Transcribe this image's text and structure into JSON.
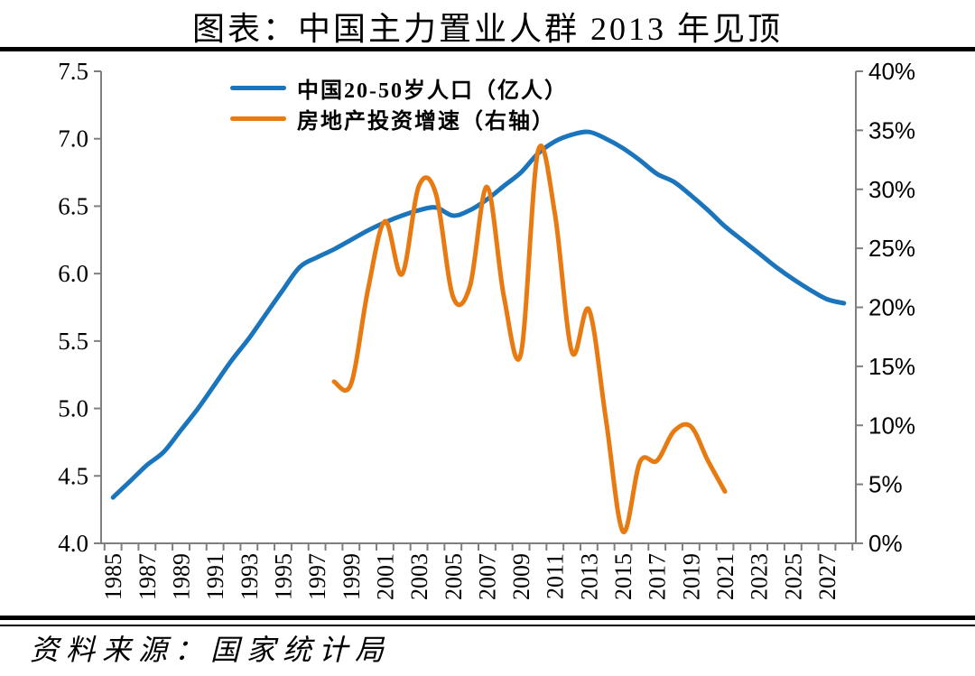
{
  "page": {
    "title": "图表：中国主力置业人群 2013 年见顶",
    "source": "资料来源：国家统计局"
  },
  "legend": {
    "items": [
      {
        "label": "中国20-50岁人口（亿人）",
        "color": "#1B75BC"
      },
      {
        "label": "房地产投资增速（右轴）",
        "color": "#E87A12"
      }
    ]
  },
  "colors": {
    "axis": "#7F7F7F",
    "text": "#000000",
    "rule": "#000000",
    "background": "#FFFFFF"
  },
  "chart_data": {
    "type": "line",
    "title": "图表：中国主力置业人群 2013 年见顶",
    "source": "资料来源：国家统计局",
    "grid": false,
    "legend_position": "inside-top-center",
    "x_axis": {
      "min": 1985,
      "max": 2028,
      "tick_step_years": 1,
      "tick_labels": [
        "1985",
        "1987",
        "1989",
        "1991",
        "1993",
        "1995",
        "1997",
        "1999",
        "2001",
        "2003",
        "2005",
        "2007",
        "2009",
        "2011",
        "2013",
        "2015",
        "2017",
        "2019",
        "2021",
        "2023",
        "2025",
        "2027"
      ],
      "label_rotation_deg": -90
    },
    "y_axis_left": {
      "min": 4.0,
      "max": 7.5,
      "step": 0.5,
      "tick_labels": [
        "7.5",
        "7.0",
        "6.5",
        "6.0",
        "5.5",
        "5.0",
        "4.5",
        "4.0"
      ]
    },
    "y_axis_right": {
      "min": 0,
      "max": 40,
      "step": 5,
      "unit": "%",
      "tick_labels": [
        "40%",
        "35%",
        "30%",
        "25%",
        "20%",
        "15%",
        "10%",
        "5%",
        "0%"
      ]
    },
    "series": [
      {
        "name": "中国20-50岁人口（亿人）",
        "axis": "left",
        "color": "#1B75BC",
        "years": [
          1985,
          1986,
          1987,
          1988,
          1989,
          1990,
          1991,
          1992,
          1993,
          1994,
          1995,
          1996,
          1997,
          1998,
          1999,
          2000,
          2001,
          2002,
          2003,
          2004,
          2005,
          2006,
          2007,
          2008,
          2009,
          2010,
          2011,
          2012,
          2013,
          2014,
          2015,
          2016,
          2017,
          2018,
          2019,
          2020,
          2021,
          2022,
          2023,
          2024,
          2025,
          2026,
          2027,
          2028
        ],
        "values": [
          4.34,
          4.46,
          4.58,
          4.68,
          4.84,
          5.0,
          5.18,
          5.36,
          5.52,
          5.7,
          5.88,
          6.05,
          6.12,
          6.18,
          6.25,
          6.32,
          6.38,
          6.43,
          6.47,
          6.49,
          6.43,
          6.47,
          6.55,
          6.65,
          6.75,
          6.89,
          6.98,
          7.03,
          7.05,
          7.0,
          6.93,
          6.84,
          6.74,
          6.68,
          6.58,
          6.47,
          6.35,
          6.25,
          6.15,
          6.05,
          5.96,
          5.88,
          5.81,
          5.78
        ]
      },
      {
        "name": "房地产投资增速（右轴）",
        "axis": "right",
        "color": "#E87A12",
        "years": [
          1998,
          1999,
          2000,
          2001,
          2002,
          2003,
          2004,
          2005,
          2006,
          2007,
          2008,
          2009,
          2010,
          2011,
          2012,
          2013,
          2014,
          2015,
          2016,
          2017,
          2018,
          2019,
          2020,
          2021
        ],
        "values": [
          13.7,
          13.5,
          21.5,
          27.3,
          22.8,
          30.3,
          29.6,
          20.9,
          21.8,
          30.2,
          20.9,
          16.1,
          33.2,
          27.9,
          16.2,
          19.8,
          10.5,
          1.0,
          6.9,
          7.0,
          9.5,
          9.9,
          7.0,
          4.4
        ]
      }
    ]
  }
}
